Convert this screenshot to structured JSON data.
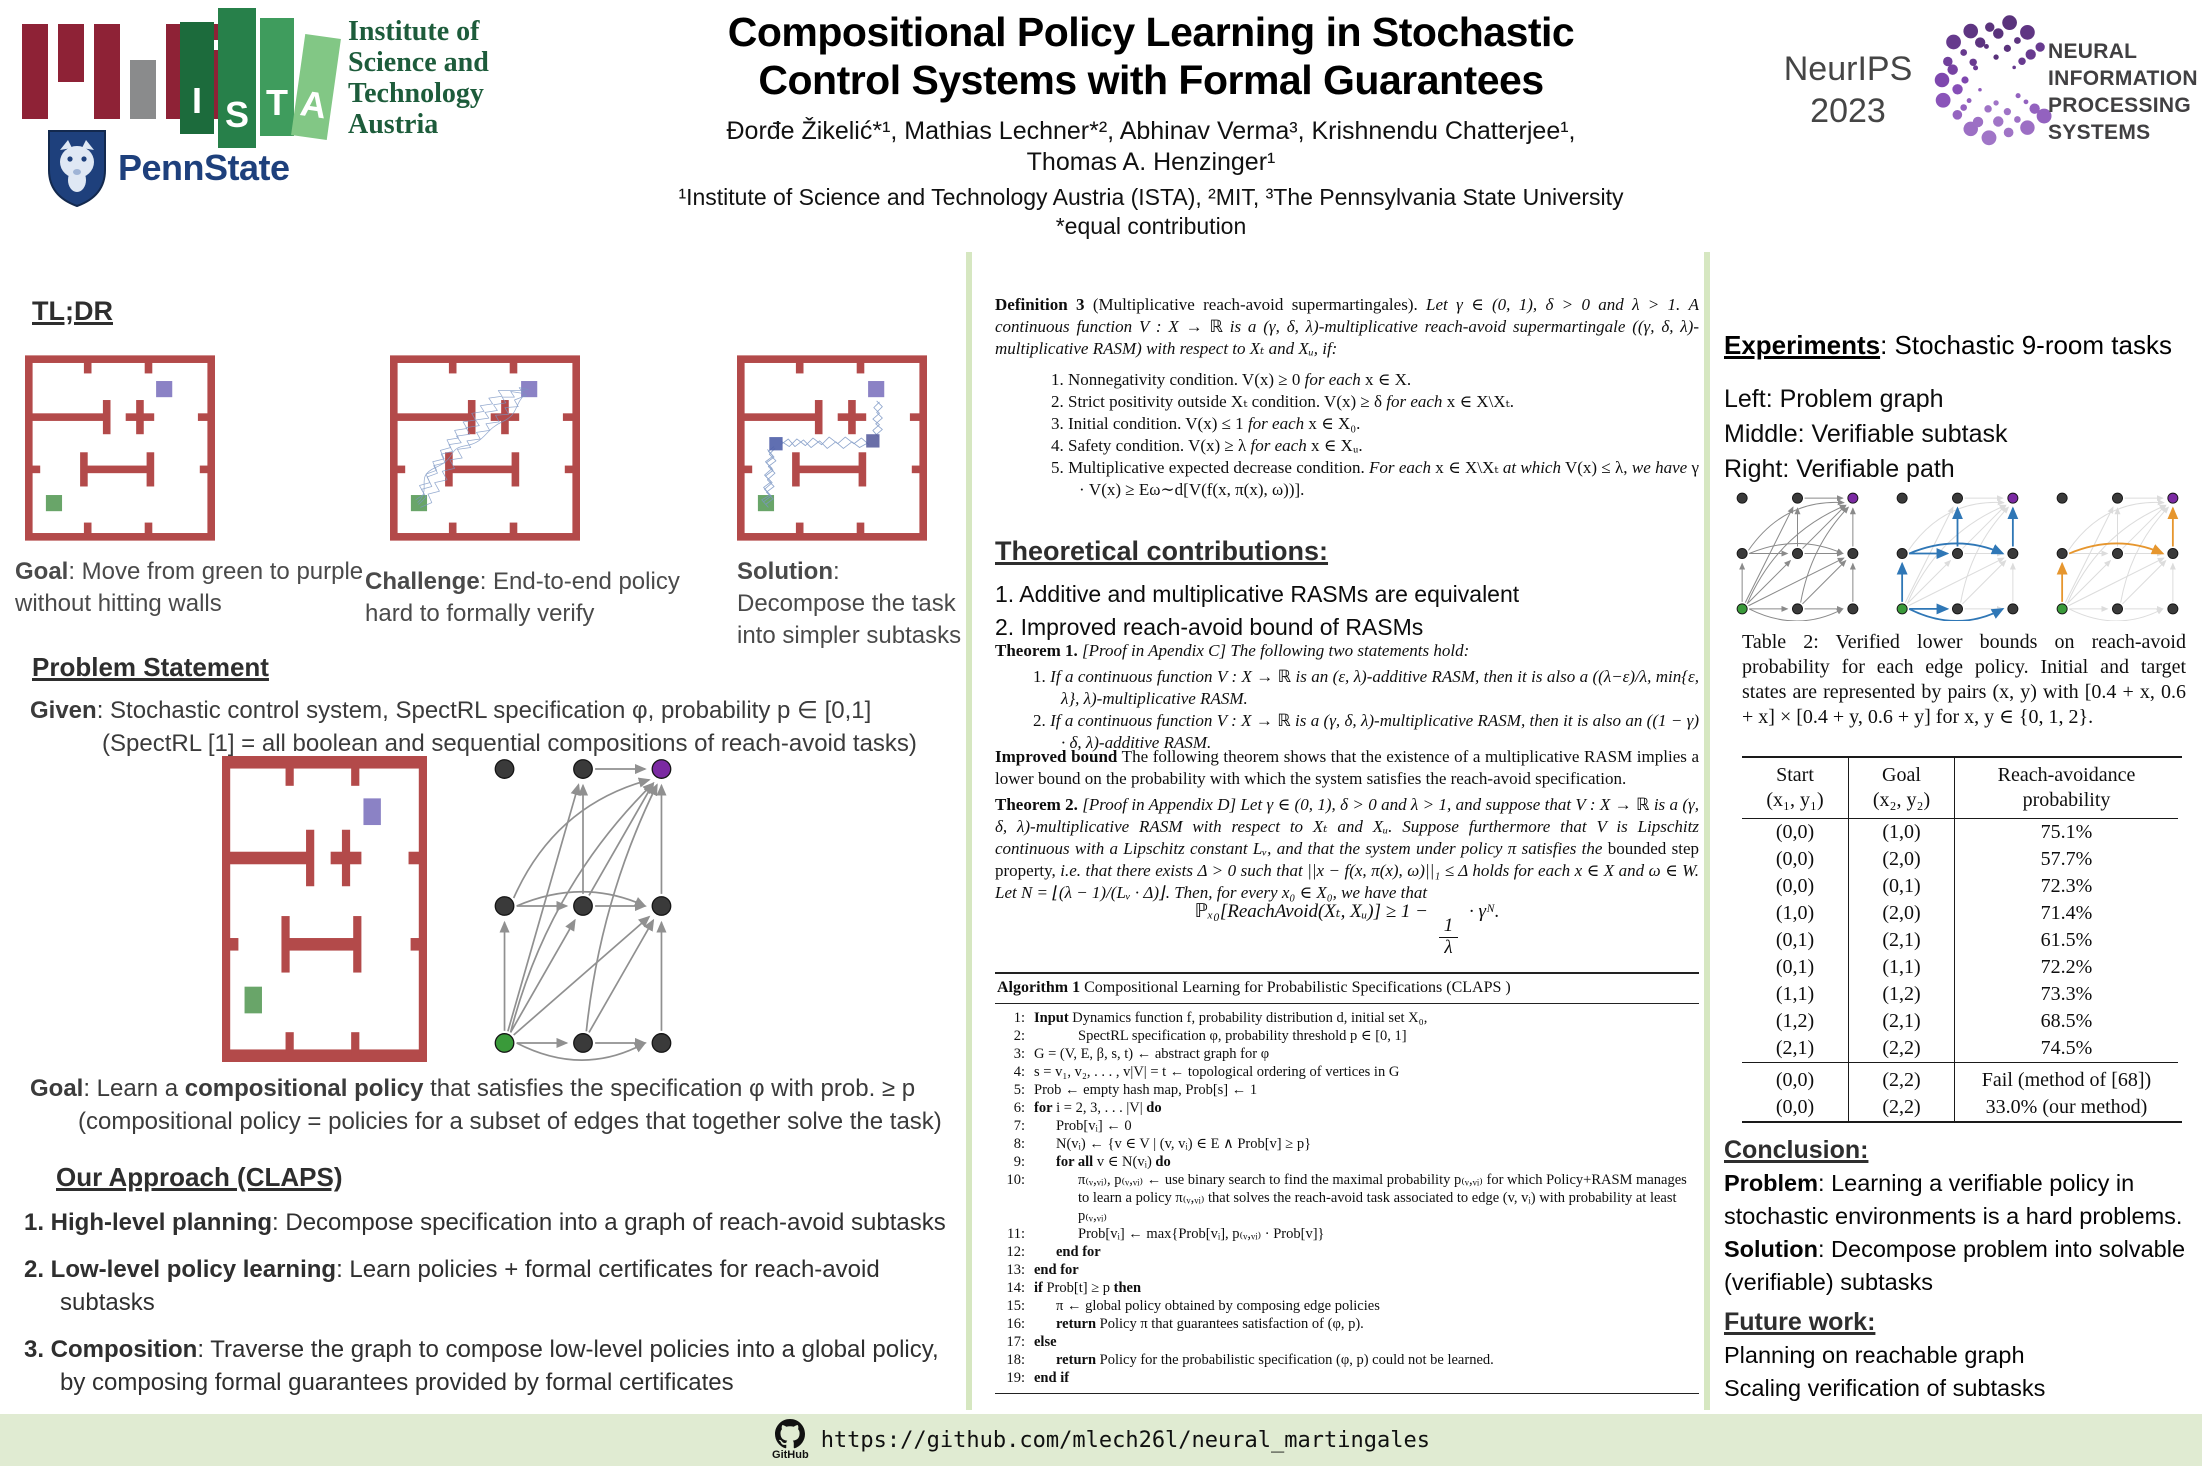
{
  "colors": {
    "wall_red": "#b34a4a",
    "start_green": "#3a9a3a",
    "goal_purple": "#7b2aa2",
    "node_gray": "#3a3a3a",
    "edge_gray": "#8a8a8a",
    "edge_faint": "#dcdcdc",
    "path_blue": "#2f77b6",
    "path_orange": "#e6962e",
    "divider_green": "#d6e7c1",
    "footer_bg": "#e0ebd2",
    "neurips_purple": "#6a4a93",
    "mit_maroon": "#8e2236",
    "mit_gray": "#8a8b8c",
    "pennstate_navy": "#1e407c"
  },
  "header": {
    "title_line1": "Compositional Policy Learning in Stochastic",
    "title_line2": "Control Systems with Formal Guarantees",
    "authors_line1": "Đorđe Žikelić*¹, Mathias Lechner*², Abhinav Verma³, Krishnendu Chatterjee¹,",
    "authors_line2": "Thomas A. Henzinger¹",
    "affiliations": "¹Institute of Science and Technology Austria (ISTA), ²MIT, ³The Pennsylvania State University",
    "equal_contribution": "*equal contribution",
    "logos": {
      "ista_letters": [
        "I",
        "S",
        "T",
        "A"
      ],
      "ista_text_lines": [
        "Institute of",
        "Science and",
        "Technology",
        "Austria"
      ],
      "pennstate": "PennState",
      "neurips_line1": "NeurIPS",
      "neurips_line2": "2023",
      "neurips_text_lines": [
        "NEURAL",
        "INFORMATION",
        "PROCESSING",
        "SYSTEMS"
      ]
    }
  },
  "tldr": {
    "heading": "TL;DR",
    "captions": [
      "**Goal**: Move from green to purple without hitting walls",
      "**Challenge**: End-to-end policy hard to formally verify",
      "**Solution**: Decompose the task into simpler subtasks"
    ]
  },
  "problem": {
    "heading": "Problem Statement",
    "given_line1": "**Given**: Stochastic control system, SpectRL specification φ, probability p ∈ [0,1]",
    "given_line2": "(SpectRL [1] = all boolean and sequential compositions of reach-avoid tasks)",
    "goal_line1": "**Goal**: Learn a **compositional policy** that satisfies the specification φ with prob.  ≥ p",
    "goal_line2": "(compositional policy = policies for a subset of edges that together solve the task)"
  },
  "approach": {
    "heading": "Our Approach (CLAPS)",
    "items": [
      "**1. High-level planning**: Decompose specification into a graph of reach-avoid subtasks",
      "**2. Low-level policy learning**: Learn policies + formal certificates for reach-avoid subtasks",
      "**3. Composition**: Traverse the graph to compose low-level policies into a global policy, by composing formal guarantees provided by formal certificates"
    ]
  },
  "definition": {
    "intro": "**Definition 3** (Multiplicative reach-avoid supermartingales). *Let γ ∈ (0, 1), δ > 0 and λ > 1. A continuous function V : X → ℝ is a (γ, δ, λ)-multiplicative reach-avoid supermartingale ((γ, δ, λ)-multiplicative RASM) with respect to Xₜ and Xᵤ, if:*",
    "conditions": [
      "1.  Nonnegativity condition. V(x) ≥ 0 *for each* x ∈ X.",
      "2.  Strict positivity outside Xₜ condition. V(x) ≥ δ *for each* x ∈ X\\Xₜ.",
      "3.  Initial condition. V(x) ≤ 1 *for each* x ∈ X₀.",
      "4.  Safety condition. V(x) ≥ λ *for each* x ∈ Xᵤ.",
      "5.  Multiplicative expected decrease condition. *For each* x ∈ X\\Xₜ *at which* V(x) ≤ λ, *we have* γ · V(x) ≥ Eω∼d[V(f(x, π(x), ω))]."
    ]
  },
  "theory": {
    "heading": "Theoretical contributions:",
    "items": [
      "1. Additive and multiplicative RASMs are equivalent",
      "2. Improved reach-avoid bound of RASMs"
    ]
  },
  "theorem1": {
    "intro": "**Theorem 1.**  *[Proof in Apendix C] The following two statements hold:*",
    "items": [
      "1.  *If a continuous function V : X → ℝ is an (ε, λ)-additive RASM, then it is also a ((λ−ε)/λ, min{ε, λ}, λ)-multiplicative RASM.*",
      "2.  *If a continuous function V : X → ℝ is a (γ, δ, λ)-multiplicative RASM, then it is also an ((1 − γ) · δ, λ)-additive RASM.*"
    ]
  },
  "improved_bound": "**Improved bound** The following theorem shows that the existence of a multiplicative RASM implies a lower bound on the probability with which the system satisfies the reach-avoid specification.",
  "theorem2": {
    "body": "**Theorem 2.**  *[Proof in Appendix D] Let γ ∈ (0, 1), δ > 0 and λ > 1, and suppose that V : X → ℝ is a (γ, δ, λ)-multiplicative RASM with respect to Xₜ and Xᵤ. Suppose furthermore that V is Lipschitz continuous with a Lipschitz constant Lᵥ, and that the system under policy π satisfies the* bounded step property, *i.e. that there exists Δ > 0 such that ||x − f(x, π(x), ω)||₁ ≤ Δ holds for each x ∈ X and ω ∈ W. Let N = ⌊(λ − 1)/(Lᵥ · Δ)⌋. Then, for every x₀ ∈ X₀, we have that*",
    "formula_pre": "ℙₓ₀[ReachAvoid(Xₜ, Xᵤ)] ≥ 1 −",
    "formula_frac_num": "1",
    "formula_frac_den": "λ",
    "formula_post": "· γᴺ."
  },
  "algorithm": {
    "title": "**Algorithm 1** Compositional Learning for Probabilistic Specifications (CLAPS )",
    "lines": [
      {
        "num": "1:",
        "indent": 0,
        "text": "**Input** Dynamics function f, probability distribution d, initial set X₀,"
      },
      {
        "num": "2:",
        "indent": 2,
        "text": "SpectRL specification φ, probability threshold p ∈ [0, 1]"
      },
      {
        "num": "3:",
        "indent": 0,
        "text": "G = (V, E, β, s, t) ← abstract graph for φ"
      },
      {
        "num": "4:",
        "indent": 0,
        "text": "s = v₁, v₂, . . . , v|V| = t ← topological ordering of vertices in G"
      },
      {
        "num": "5:",
        "indent": 0,
        "text": "Prob ← empty hash map, Prob[s] ← 1"
      },
      {
        "num": "6:",
        "indent": 0,
        "text": "**for** i = 2, 3, . . . |V| **do**"
      },
      {
        "num": "7:",
        "indent": 1,
        "text": "Prob[vᵢ] ← 0"
      },
      {
        "num": "8:",
        "indent": 1,
        "text": "N(vᵢ) ← {v ∈ V | (v, vᵢ) ∈ E ∧ Prob[v] ≥ p}"
      },
      {
        "num": "9:",
        "indent": 1,
        "text": "**for all** v ∈ N(vᵢ) **do**"
      },
      {
        "num": "10:",
        "indent": 2,
        "text": "π₍ᵥ,ᵥᵢ₎, p₍ᵥ,ᵥᵢ₎ ← use binary search to find the maximal probability p₍ᵥ,ᵥᵢ₎ for which Policy+RASM manages to learn a policy π₍ᵥ,ᵥᵢ₎ that solves the reach-avoid task associated to edge (v, vᵢ) with probability at least p₍ᵥ,ᵥᵢ₎"
      },
      {
        "num": "11:",
        "indent": 2,
        "text": "Prob[vᵢ] ← max{Prob[vᵢ],  p₍ᵥ,ᵥᵢ₎ · Prob[v]}"
      },
      {
        "num": "12:",
        "indent": 1,
        "text": "**end for**"
      },
      {
        "num": "13:",
        "indent": 0,
        "text": "**end for**"
      },
      {
        "num": "14:",
        "indent": 0,
        "text": "**if** Prob[t] ≥ p **then**"
      },
      {
        "num": "15:",
        "indent": 1,
        "text": "π ← global policy obtained by composing edge policies"
      },
      {
        "num": "16:",
        "indent": 1,
        "text": "**return**  Policy π that guarantees satisfaction of (φ, p)."
      },
      {
        "num": "17:",
        "indent": 0,
        "text": "**else**"
      },
      {
        "num": "18:",
        "indent": 1,
        "text": "**return**  Policy for the probabilistic specification (φ, p) could not be learned."
      },
      {
        "num": "19:",
        "indent": 0,
        "text": "**end if**"
      }
    ]
  },
  "experiments": {
    "heading_label": "Experiments",
    "heading_rest": ": Stochastic 9-room tasks",
    "legend": [
      "Left: Problem graph",
      "Middle: Verifiable subtask",
      "Right: Verifiable path"
    ],
    "graph": {
      "cols": [
        20,
        75,
        130
      ],
      "rows": [
        20,
        75,
        130
      ],
      "start": [
        2,
        0
      ],
      "goal": [
        0,
        2
      ],
      "edges": [
        [
          2,
          0,
          2,
          1,
          0
        ],
        [
          2,
          1,
          2,
          2,
          0
        ],
        [
          2,
          0,
          2,
          2,
          -24
        ],
        [
          2,
          0,
          1,
          0,
          0
        ],
        [
          2,
          0,
          1,
          1,
          0
        ],
        [
          2,
          0,
          1,
          2,
          0
        ],
        [
          2,
          0,
          0,
          1,
          0
        ],
        [
          2,
          0,
          0,
          2,
          28
        ],
        [
          1,
          0,
          1,
          1,
          0
        ],
        [
          1,
          1,
          1,
          2,
          0
        ],
        [
          1,
          0,
          1,
          2,
          20
        ],
        [
          1,
          0,
          0,
          2,
          30
        ],
        [
          1,
          1,
          0,
          1,
          0
        ],
        [
          1,
          1,
          0,
          2,
          0
        ],
        [
          1,
          2,
          0,
          2,
          0
        ],
        [
          2,
          1,
          1,
          2,
          0
        ],
        [
          2,
          2,
          1,
          2,
          0
        ],
        [
          2,
          1,
          0,
          2,
          16
        ],
        [
          0,
          1,
          0,
          2,
          0
        ]
      ],
      "path_blue": [
        [
          2,
          0,
          2,
          1,
          0
        ],
        [
          2,
          0,
          2,
          2,
          -24
        ],
        [
          2,
          0,
          1,
          0,
          0
        ],
        [
          1,
          0,
          1,
          1,
          0
        ],
        [
          1,
          0,
          1,
          2,
          20
        ],
        [
          1,
          1,
          0,
          1,
          0
        ],
        [
          1,
          2,
          0,
          2,
          0
        ]
      ],
      "path_orange": [
        [
          2,
          0,
          1,
          0,
          0
        ],
        [
          1,
          0,
          1,
          2,
          20
        ],
        [
          1,
          2,
          0,
          2,
          0
        ]
      ]
    }
  },
  "table2": {
    "caption": "Table 2: Verified lower bounds on reach-avoid probability for each edge policy.  Initial and target states are represented by pairs (x, y) with [0.4 + x, 0.6 + x] × [0.4 + y, 0.6 + y] for x, y ∈ {0, 1, 2}.",
    "headers": [
      [
        "Start",
        "(x₁, y₁)"
      ],
      [
        "Goal",
        "(x₂, y₂)"
      ],
      [
        "Reach-avoidance",
        "probability"
      ]
    ],
    "rows": [
      [
        "(0,0)",
        "(1,0)",
        "75.1%"
      ],
      [
        "(0,0)",
        "(2,0)",
        "57.7%"
      ],
      [
        "(0,0)",
        "(0,1)",
        "72.3%"
      ],
      [
        "(1,0)",
        "(2,0)",
        "71.4%"
      ],
      [
        "(0,1)",
        "(2,1)",
        "61.5%"
      ],
      [
        "(0,1)",
        "(1,1)",
        "72.2%"
      ],
      [
        "(1,1)",
        "(1,2)",
        "73.3%"
      ],
      [
        "(1,2)",
        "(2,1)",
        "68.5%"
      ],
      [
        "(2,1)",
        "(2,2)",
        "74.5%"
      ]
    ],
    "rows_bottom": [
      [
        "(0,0)",
        "(2,2)",
        "Fail (method of [68])"
      ],
      [
        "(0,0)",
        "(2,2)",
        "33.0% (our method)"
      ]
    ]
  },
  "conclusion": {
    "heading": "Conclusion:",
    "lines": [
      "**Problem**: Learning a verifiable policy in stochastic environments is a hard problems.",
      "**Solution**: Decompose problem into solvable (verifiable) subtasks"
    ]
  },
  "future": {
    "heading": "Future work:",
    "lines": [
      "Planning on reachable graph",
      "Scaling verification of subtasks"
    ]
  },
  "footer": {
    "github_label": "GitHub",
    "repo_url": "https://github.com/mlech26l/neural_martingales"
  }
}
